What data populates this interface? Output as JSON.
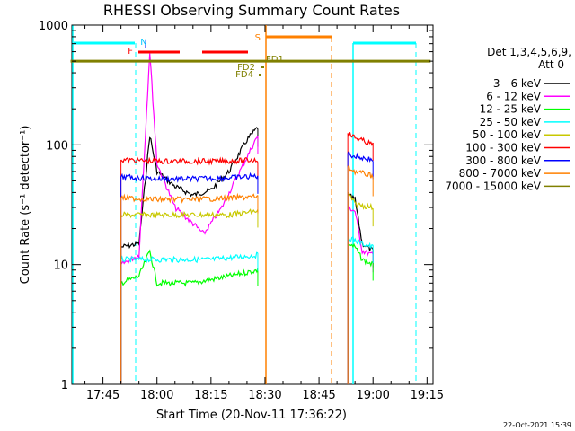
{
  "chart_data": {
    "type": "line",
    "title": "RHESSI Observing Summary Count Rates",
    "xlabel": "Start Time (20-Nov-11 17:36:22)",
    "ylabel": "Count Rate (s⁻¹ detector⁻¹)",
    "y_scale": "log",
    "ylim": [
      1,
      1000
    ],
    "xlim": [
      "17:36:22",
      "19:16:40"
    ],
    "x_ticks": [
      "17:45",
      "18:00",
      "18:15",
      "18:30",
      "18:45",
      "19:00",
      "19:15"
    ],
    "y_ticks": [
      "1",
      "10",
      "100",
      "1000"
    ],
    "date_stamp": "22-Oct-2021 15:39",
    "legend": {
      "position": "right",
      "header": [
        "Det 1,3,4,5,6,9,",
        "Att 0"
      ]
    },
    "annotations": [
      {
        "label": "N",
        "color": "#00c8ff"
      },
      {
        "label": "F",
        "color": "#ff0000"
      },
      {
        "label": "S",
        "color": "#ff8000"
      },
      {
        "label": "FD1",
        "color": "#808000"
      },
      {
        "label": "FD2",
        "color": "#808000"
      },
      {
        "label": "FD4",
        "color": "#808000"
      }
    ],
    "series": [
      {
        "name": "3 - 6 keV",
        "color": "#000000",
        "segments": [
          [
            [
              "17:50",
              "14"
            ],
            [
              "17:55",
              "15"
            ],
            [
              "17:58",
              "120"
            ],
            [
              "18:00",
              "60"
            ],
            [
              "18:05",
              "45"
            ],
            [
              "18:10",
              "38"
            ],
            [
              "18:15",
              "42"
            ],
            [
              "18:20",
              "60"
            ],
            [
              "18:25",
              "110"
            ],
            [
              "18:28",
              "140"
            ]
          ],
          [
            [
              "18:53",
              "38"
            ],
            [
              "18:55",
              "35"
            ],
            [
              "18:57",
              "15"
            ],
            [
              "19:00",
              "13"
            ]
          ]
        ]
      },
      {
        "name": "6 - 12 keV",
        "color": "#ff00ff",
        "segments": [
          [
            [
              "17:50",
              "10"
            ],
            [
              "17:55",
              "12"
            ],
            [
              "17:58",
              "600"
            ],
            [
              "18:00",
              "70"
            ],
            [
              "18:05",
              "30"
            ],
            [
              "18:10",
              "22"
            ],
            [
              "18:13",
              "18"
            ],
            [
              "18:18",
              "30"
            ],
            [
              "18:23",
              "60"
            ],
            [
              "18:28",
              "120"
            ]
          ],
          [
            [
              "18:53",
              "30"
            ],
            [
              "18:55",
              "28"
            ],
            [
              "18:57",
              "13"
            ],
            [
              "19:00",
              "12"
            ]
          ]
        ]
      },
      {
        "name": "12 - 25 keV",
        "color": "#00ff00",
        "segments": [
          [
            [
              "17:50",
              "7"
            ],
            [
              "17:55",
              "8"
            ],
            [
              "17:58",
              "13"
            ],
            [
              "18:00",
              "7"
            ],
            [
              "18:10",
              "7"
            ],
            [
              "18:20",
              "8"
            ],
            [
              "18:28",
              "9"
            ]
          ],
          [
            [
              "18:53",
              "15"
            ],
            [
              "18:55",
              "14"
            ],
            [
              "18:57",
              "11"
            ],
            [
              "19:00",
              "10"
            ]
          ]
        ]
      },
      {
        "name": "25 - 50 keV",
        "color": "#00ffff",
        "segments": [
          [
            [
              "17:50",
              "11"
            ],
            [
              "17:55",
              "11"
            ],
            [
              "18:05",
              "11"
            ],
            [
              "18:15",
              "11"
            ],
            [
              "18:28",
              "12"
            ]
          ],
          [
            [
              "18:53",
              "17"
            ],
            [
              "18:55",
              "16"
            ],
            [
              "18:57",
              "15"
            ],
            [
              "19:00",
              "14"
            ]
          ]
        ]
      },
      {
        "name": "50 - 100 keV",
        "color": "#c8c800",
        "segments": [
          [
            [
              "17:50",
              "26"
            ],
            [
              "18:00",
              "26"
            ],
            [
              "18:10",
              "26"
            ],
            [
              "18:20",
              "26"
            ],
            [
              "18:28",
              "28"
            ]
          ],
          [
            [
              "18:53",
              "40"
            ],
            [
              "18:55",
              "32"
            ],
            [
              "19:00",
              "30"
            ]
          ]
        ]
      },
      {
        "name": "100 - 300 keV",
        "color": "#ff0000",
        "segments": [
          [
            [
              "17:50",
              "75"
            ],
            [
              "18:00",
              "73"
            ],
            [
              "18:10",
              "73"
            ],
            [
              "18:20",
              "73"
            ],
            [
              "18:28",
              "75"
            ]
          ],
          [
            [
              "18:53",
              "125"
            ],
            [
              "18:55",
              "115"
            ],
            [
              "19:00",
              "100"
            ]
          ]
        ]
      },
      {
        "name": "300 - 800 keV",
        "color": "#0000ff",
        "segments": [
          [
            [
              "17:50",
              "54"
            ],
            [
              "18:00",
              "52"
            ],
            [
              "18:10",
              "52"
            ],
            [
              "18:20",
              "53"
            ],
            [
              "18:28",
              "55"
            ]
          ],
          [
            [
              "18:53",
              "85"
            ],
            [
              "18:55",
              "80"
            ],
            [
              "19:00",
              "75"
            ]
          ]
        ]
      },
      {
        "name": "800 - 7000 keV",
        "color": "#ff8000",
        "segments": [
          [
            [
              "17:50",
              "36"
            ],
            [
              "18:00",
              "35"
            ],
            [
              "18:10",
              "35"
            ],
            [
              "18:20",
              "36"
            ],
            [
              "18:28",
              "37"
            ]
          ],
          [
            [
              "18:53",
              "65"
            ],
            [
              "18:55",
              "60"
            ],
            [
              "19:00",
              "55"
            ]
          ]
        ]
      },
      {
        "name": "7000 - 15000 keV",
        "color": "#808000",
        "segments": [
          [
            [
              "17:36",
              "500"
            ],
            [
              "19:16",
              "500"
            ]
          ]
        ]
      }
    ]
  }
}
